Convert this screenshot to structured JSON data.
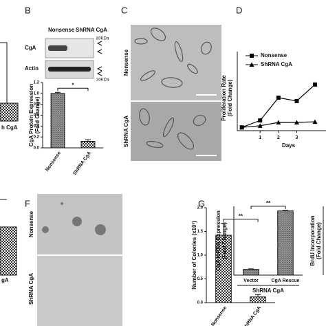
{
  "panel_labels": [
    "B",
    "C",
    "D",
    "F",
    "G"
  ],
  "partial_labels": [
    "h CgA",
    "gA"
  ],
  "blot": {
    "columns": [
      "Nonsense",
      "ShRNA CgA"
    ],
    "rows": [
      "CgA",
      "Actin"
    ],
    "markers": [
      "80KDa",
      "30KDa"
    ]
  },
  "micrographs": {
    "C": [
      "Nonsense",
      "ShRNA CgA"
    ],
    "F": [
      "Nonsense",
      "ShRNA CgA"
    ]
  },
  "chart_data": [
    {
      "type": "bar",
      "y_label": [
        "CgA Protein Expression",
        "(Fold Change)"
      ],
      "categories": [
        "Nonsense",
        "ShRNA CgA"
      ],
      "values": [
        1.0,
        0.12
      ],
      "errors": [
        0.02,
        0.03
      ],
      "patterns": [
        "dots",
        "checker"
      ],
      "significance": "*",
      "ylim": [
        0,
        1.2
      ],
      "yticks": [
        {
          "value": 0,
          "label": "0.0"
        },
        {
          "value": 0.2,
          "label": "0.2"
        },
        {
          "value": 0.4,
          "label": "0.4"
        },
        {
          "value": 0.6,
          "label": "0.6"
        },
        {
          "value": 0.8,
          "label": "0.8"
        },
        {
          "value": 1,
          "label": "1.0"
        },
        {
          "value": 1.2,
          "label": "1.2"
        }
      ]
    },
    {
      "type": "line",
      "y_label": [
        "Proliferation Rate",
        "(Fold Change)"
      ],
      "x_label": "Days",
      "x": [
        0,
        1,
        2,
        3,
        4
      ],
      "xlim": [
        -0.25,
        4.6
      ],
      "xticks": [
        1,
        2,
        3
      ],
      "ylim": [
        0,
        24
      ],
      "series": [
        {
          "name": "Nonsense",
          "marker": "square",
          "color": "#000000",
          "values": [
            1,
            3.1,
            10,
            9,
            14
          ]
        },
        {
          "name": "ShRNA CgA",
          "marker": "triangle",
          "color": "#000000",
          "values": [
            1,
            1.5,
            2.5,
            2.5,
            2.7
          ]
        }
      ]
    },
    {
      "type": "bar",
      "y_label": [
        "Number of Colonies (x10³)"
      ],
      "categories": [
        "Nonsense",
        "ShRNA CgA"
      ],
      "values": [
        1.42,
        0.12
      ],
      "errors": [
        0.25,
        0.05
      ],
      "patterns": [
        "checker",
        "checker"
      ],
      "significance": "**",
      "ylim": [
        0,
        2
      ],
      "yticks": [
        {
          "value": 0,
          "label": "0.0"
        },
        {
          "value": 0.5,
          "label": "0.5"
        },
        {
          "value": 1,
          "label": "1.0"
        },
        {
          "value": 1.5,
          "label": "1.5"
        },
        {
          "value": 2,
          "label": "2.0"
        }
      ]
    },
    {
      "type": "bar",
      "y_label": [
        "CgA mRNA Expression",
        "(Fold Change)"
      ],
      "categories": [
        "Vector",
        "CgA Rescue"
      ],
      "group_label": "ShRNA CgA",
      "values": [
        1,
        11.2
      ],
      "errors": [
        0.1,
        0.1
      ],
      "patterns": [
        "dots",
        "dots"
      ],
      "significance": "**",
      "ylim": [
        0,
        12
      ]
    },
    {
      "type": "bar",
      "y_label": [
        "BrdU Incorporation",
        "(Fold Change)"
      ]
    }
  ]
}
